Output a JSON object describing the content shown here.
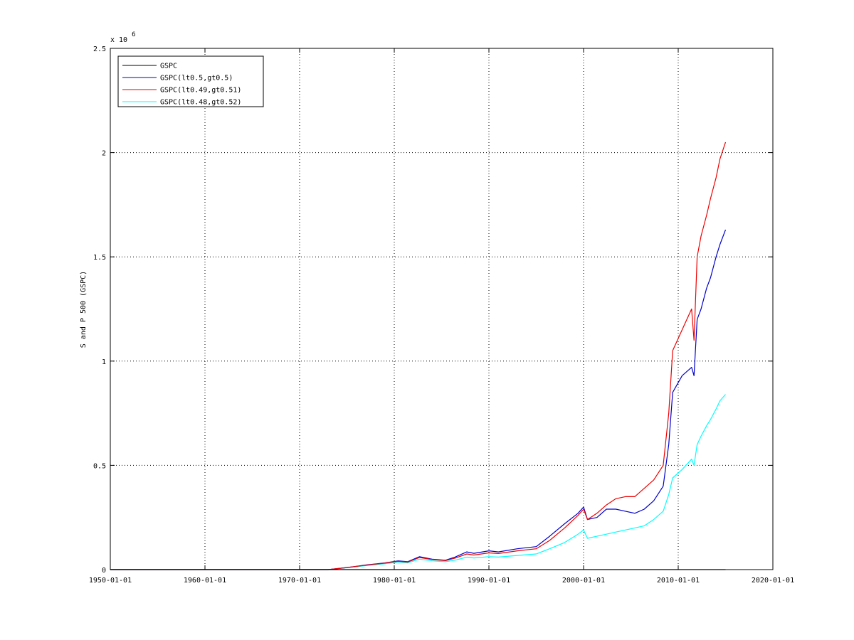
{
  "chart_data": {
    "type": "line",
    "ylabel": "S and P 500 (GSPC)",
    "y_multiplier": "x 10",
    "y_multiplier_exp": "6",
    "xlim": [
      "1950-01-01",
      "2020-01-01"
    ],
    "ylim": [
      0,
      2.5
    ],
    "x_tick_labels": [
      "1950-01-01",
      "1960-01-01",
      "1970-01-01",
      "1980-01-01",
      "1990-01-01",
      "2000-01-01",
      "2010-01-01",
      "2020-01-01"
    ],
    "y_tick_labels": [
      "0",
      "0.5",
      "1",
      "1.5",
      "2",
      "2.5"
    ],
    "grid": true,
    "legend_position": "top-left",
    "series": [
      {
        "name": "GSPC",
        "color": "#000000",
        "points": [
          [
            "1950-01-01",
            0.0
          ],
          [
            "2015-01-01",
            0.0
          ]
        ]
      },
      {
        "name": "GSPC(lt0.5,gt0.5)",
        "color": "#0000cc",
        "points": [
          [
            "1950-01-01",
            0.0
          ],
          [
            "1973-01-01",
            0.0
          ],
          [
            "1975-01-01",
            0.01
          ],
          [
            "1977-01-01",
            0.022
          ],
          [
            "1979-01-01",
            0.032
          ],
          [
            "1980-06-01",
            0.042
          ],
          [
            "1981-06-01",
            0.038
          ],
          [
            "1982-09-01",
            0.062
          ],
          [
            "1984-01-01",
            0.05
          ],
          [
            "1985-06-01",
            0.045
          ],
          [
            "1986-06-01",
            0.06
          ],
          [
            "1987-09-01",
            0.085
          ],
          [
            "1988-06-01",
            0.078
          ],
          [
            "1990-01-01",
            0.09
          ],
          [
            "1991-01-01",
            0.085
          ],
          [
            "1993-01-01",
            0.1
          ],
          [
            "1995-01-01",
            0.11
          ],
          [
            "1996-06-01",
            0.16
          ],
          [
            "1998-01-01",
            0.22
          ],
          [
            "1999-06-01",
            0.27
          ],
          [
            "2000-01-01",
            0.3
          ],
          [
            "2000-06-01",
            0.24
          ],
          [
            "2001-06-01",
            0.25
          ],
          [
            "2002-06-01",
            0.29
          ],
          [
            "2003-06-01",
            0.29
          ],
          [
            "2004-06-01",
            0.28
          ],
          [
            "2005-06-01",
            0.27
          ],
          [
            "2006-06-01",
            0.29
          ],
          [
            "2007-06-01",
            0.33
          ],
          [
            "2008-06-01",
            0.4
          ],
          [
            "2009-01-01",
            0.6
          ],
          [
            "2009-06-01",
            0.85
          ],
          [
            "2010-06-01",
            0.93
          ],
          [
            "2011-06-01",
            0.97
          ],
          [
            "2011-09-01",
            0.93
          ],
          [
            "2012-01-01",
            1.2
          ],
          [
            "2012-06-01",
            1.25
          ],
          [
            "2013-01-01",
            1.35
          ],
          [
            "2013-06-01",
            1.4
          ],
          [
            "2014-01-01",
            1.5
          ],
          [
            "2014-06-01",
            1.56
          ],
          [
            "2015-01-01",
            1.63
          ]
        ]
      },
      {
        "name": "GSPC(lt0.49,gt0.51)",
        "color": "#ee0000",
        "points": [
          [
            "1950-01-01",
            0.0
          ],
          [
            "1973-01-01",
            0.0
          ],
          [
            "1975-01-01",
            0.01
          ],
          [
            "1977-01-01",
            0.021
          ],
          [
            "1979-01-01",
            0.031
          ],
          [
            "1980-06-01",
            0.04
          ],
          [
            "1981-06-01",
            0.036
          ],
          [
            "1982-09-01",
            0.058
          ],
          [
            "1984-01-01",
            0.048
          ],
          [
            "1985-06-01",
            0.043
          ],
          [
            "1986-06-01",
            0.055
          ],
          [
            "1987-09-01",
            0.075
          ],
          [
            "1988-06-01",
            0.07
          ],
          [
            "1990-01-01",
            0.08
          ],
          [
            "1991-01-01",
            0.077
          ],
          [
            "1993-01-01",
            0.09
          ],
          [
            "1995-01-01",
            0.1
          ],
          [
            "1996-06-01",
            0.14
          ],
          [
            "1998-01-01",
            0.2
          ],
          [
            "1999-06-01",
            0.26
          ],
          [
            "2000-01-01",
            0.29
          ],
          [
            "2000-06-01",
            0.24
          ],
          [
            "2001-06-01",
            0.27
          ],
          [
            "2002-06-01",
            0.31
          ],
          [
            "2003-06-01",
            0.34
          ],
          [
            "2004-06-01",
            0.35
          ],
          [
            "2005-06-01",
            0.35
          ],
          [
            "2006-06-01",
            0.39
          ],
          [
            "2007-06-01",
            0.43
          ],
          [
            "2008-06-01",
            0.5
          ],
          [
            "2009-01-01",
            0.75
          ],
          [
            "2009-06-01",
            1.05
          ],
          [
            "2010-06-01",
            1.15
          ],
          [
            "2011-06-01",
            1.25
          ],
          [
            "2011-09-01",
            1.1
          ],
          [
            "2012-01-01",
            1.5
          ],
          [
            "2012-06-01",
            1.6
          ],
          [
            "2013-01-01",
            1.7
          ],
          [
            "2013-06-01",
            1.78
          ],
          [
            "2014-01-01",
            1.88
          ],
          [
            "2014-06-01",
            1.97
          ],
          [
            "2015-01-01",
            2.05
          ]
        ]
      },
      {
        "name": "GSPC(lt0.48,gt0.52)",
        "color": "#00ffff",
        "points": [
          [
            "1950-01-01",
            0.0
          ],
          [
            "1973-01-01",
            0.0
          ],
          [
            "1975-01-01",
            0.009
          ],
          [
            "1977-01-01",
            0.019
          ],
          [
            "1979-01-01",
            0.028
          ],
          [
            "1980-06-01",
            0.035
          ],
          [
            "1981-06-01",
            0.032
          ],
          [
            "1982-09-01",
            0.05
          ],
          [
            "1984-01-01",
            0.042
          ],
          [
            "1985-06-01",
            0.038
          ],
          [
            "1986-06-01",
            0.045
          ],
          [
            "1987-09-01",
            0.06
          ],
          [
            "1988-06-01",
            0.056
          ],
          [
            "1990-01-01",
            0.062
          ],
          [
            "1991-01-01",
            0.06
          ],
          [
            "1993-01-01",
            0.068
          ],
          [
            "1995-01-01",
            0.075
          ],
          [
            "1996-06-01",
            0.1
          ],
          [
            "1998-01-01",
            0.13
          ],
          [
            "1999-06-01",
            0.17
          ],
          [
            "2000-01-01",
            0.19
          ],
          [
            "2000-06-01",
            0.15
          ],
          [
            "2001-06-01",
            0.16
          ],
          [
            "2002-06-01",
            0.17
          ],
          [
            "2003-06-01",
            0.18
          ],
          [
            "2004-06-01",
            0.19
          ],
          [
            "2005-06-01",
            0.2
          ],
          [
            "2006-06-01",
            0.21
          ],
          [
            "2007-06-01",
            0.24
          ],
          [
            "2008-06-01",
            0.28
          ],
          [
            "2009-01-01",
            0.36
          ],
          [
            "2009-06-01",
            0.44
          ],
          [
            "2010-06-01",
            0.48
          ],
          [
            "2011-06-01",
            0.53
          ],
          [
            "2011-09-01",
            0.5
          ],
          [
            "2012-01-01",
            0.6
          ],
          [
            "2012-06-01",
            0.64
          ],
          [
            "2013-01-01",
            0.69
          ],
          [
            "2013-06-01",
            0.72
          ],
          [
            "2014-01-01",
            0.77
          ],
          [
            "2014-06-01",
            0.81
          ],
          [
            "2015-01-01",
            0.84
          ]
        ]
      }
    ]
  }
}
